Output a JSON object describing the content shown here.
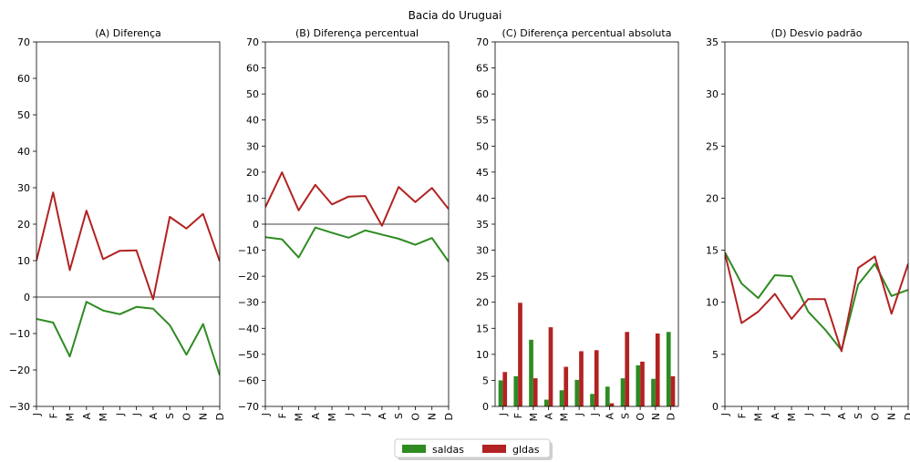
{
  "suptitle": "Bacia do Uruguai",
  "months": [
    "J",
    "F",
    "M",
    "A",
    "M",
    "J",
    "J",
    "A",
    "S",
    "O",
    "N",
    "D"
  ],
  "colors": {
    "saldas": "#2e8b22",
    "gldas": "#b22222",
    "zero_line": "#808080"
  },
  "chart_data": [
    {
      "type": "line",
      "title": "(A) Diferença",
      "ylim": [
        -30,
        70
      ],
      "yticks": [
        -30,
        -20,
        -10,
        0,
        10,
        20,
        30,
        40,
        50,
        60,
        70
      ],
      "zero_line": true,
      "categories": [
        "J",
        "F",
        "M",
        "A",
        "M",
        "J",
        "J",
        "A",
        "S",
        "O",
        "N",
        "D"
      ],
      "series": [
        {
          "name": "saldas",
          "values": [
            -6,
            -7,
            -16.3,
            -1.3,
            -3.7,
            -4.7,
            -2.7,
            -3.2,
            -7.7,
            -15.8,
            -7.4,
            -21.5
          ]
        },
        {
          "name": "gldas",
          "values": [
            10,
            28.7,
            7.4,
            23.7,
            10.4,
            12.7,
            12.8,
            -0.6,
            22,
            18.8,
            22.8,
            9.8
          ]
        }
      ]
    },
    {
      "type": "line",
      "title": "(B) Diferença percentual",
      "ylim": [
        -70,
        70
      ],
      "yticks": [
        -70,
        -60,
        -50,
        -40,
        -30,
        -20,
        -10,
        0,
        10,
        20,
        30,
        40,
        50,
        60,
        70
      ],
      "zero_line": true,
      "categories": [
        "J",
        "F",
        "M",
        "A",
        "M",
        "J",
        "J",
        "A",
        "S",
        "O",
        "N",
        "D"
      ],
      "series": [
        {
          "name": "saldas",
          "values": [
            -5,
            -5.8,
            -12.8,
            -1.3,
            -3.3,
            -5.2,
            -2.4,
            -4,
            -5.6,
            -7.9,
            -5.3,
            -14.4
          ]
        },
        {
          "name": "gldas",
          "values": [
            6.5,
            19.9,
            5.3,
            15.1,
            7.6,
            10.6,
            10.8,
            -0.6,
            14.3,
            8.5,
            13.9,
            5.8
          ]
        }
      ]
    },
    {
      "type": "bar",
      "title": "(C) Diferença percentual absoluta",
      "ylim": [
        0,
        70
      ],
      "yticks": [
        0,
        5,
        10,
        15,
        20,
        25,
        30,
        35,
        40,
        45,
        50,
        55,
        60,
        65,
        70
      ],
      "categories": [
        "J",
        "F",
        "M",
        "A",
        "M",
        "J",
        "J",
        "A",
        "S",
        "O",
        "N",
        "D"
      ],
      "series": [
        {
          "name": "saldas",
          "values": [
            5,
            5.8,
            12.8,
            1.3,
            3.1,
            5.1,
            2.4,
            3.8,
            5.4,
            7.9,
            5.3,
            14.3
          ]
        },
        {
          "name": "gldas",
          "values": [
            6.6,
            19.9,
            5.4,
            15.2,
            7.6,
            10.6,
            10.8,
            0.6,
            14.3,
            8.6,
            14,
            5.8
          ]
        }
      ]
    },
    {
      "type": "line",
      "title": "(D) Desvio padrão",
      "ylim": [
        0,
        35
      ],
      "yticks": [
        0,
        5,
        10,
        15,
        20,
        25,
        30,
        35
      ],
      "zero_line": false,
      "categories": [
        "J",
        "F",
        "M",
        "A",
        "M",
        "J",
        "J",
        "A",
        "S",
        "O",
        "N",
        "D"
      ],
      "series": [
        {
          "name": "saldas",
          "values": [
            14.8,
            11.8,
            10.4,
            12.6,
            12.5,
            9.1,
            7.4,
            5.4,
            11.7,
            13.7,
            10.6,
            11.2
          ]
        },
        {
          "name": "gldas",
          "values": [
            14.7,
            8,
            9.1,
            10.8,
            8.4,
            10.3,
            10.3,
            5.3,
            13.3,
            14.4,
            8.9,
            13.7
          ]
        }
      ]
    }
  ],
  "legend": [
    {
      "label": "saldas",
      "color": "#2e8b22"
    },
    {
      "label": "gldas",
      "color": "#b22222"
    }
  ]
}
